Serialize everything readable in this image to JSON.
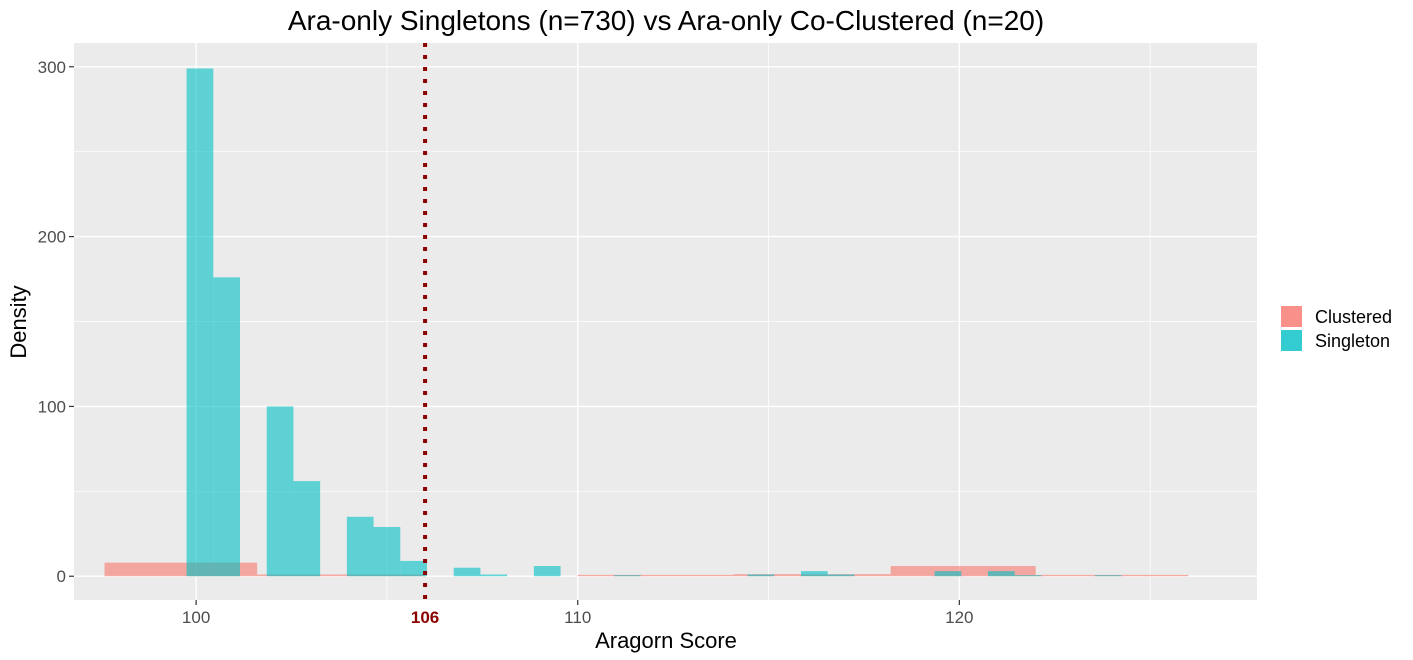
{
  "chart_data": {
    "type": "histogram",
    "title": "Ara-only Singletons (n=730) vs Ara-only Co-Clustered (n=20)",
    "xlabel": "Aragorn Score",
    "ylabel": "Density",
    "xlim": [
      96.8,
      127.8
    ],
    "ylim": [
      -14,
      314
    ],
    "xticks": [
      100,
      110,
      120
    ],
    "yticks": [
      0,
      100,
      200,
      300
    ],
    "grid": true,
    "threshold": {
      "value": 106,
      "label": "106",
      "color": "#8B0000",
      "style": "dotted"
    },
    "legend": {
      "position": "right",
      "entries": [
        "Clustered",
        "Singleton"
      ]
    },
    "series": [
      {
        "name": "Clustered",
        "color": "#F8766D",
        "opacity": 0.6,
        "bins": [
          {
            "x0": 97.6,
            "x1": 101.6,
            "y": 8
          },
          {
            "x0": 101.6,
            "x1": 103.7,
            "y": 1
          },
          {
            "x0": 103.7,
            "x1": 106.0,
            "y": 1
          },
          {
            "x0": 110.0,
            "x1": 114.1,
            "y": 0.8
          },
          {
            "x0": 114.1,
            "x1": 118.2,
            "y": 1.2
          },
          {
            "x0": 118.2,
            "x1": 122.0,
            "y": 6
          },
          {
            "x0": 122.0,
            "x1": 126.0,
            "y": 0.8
          }
        ]
      },
      {
        "name": "Singleton",
        "color": "#00BFC4",
        "opacity": 0.6,
        "bins": [
          {
            "x0": 99.75,
            "x1": 100.45,
            "y": 299
          },
          {
            "x0": 100.45,
            "x1": 101.15,
            "y": 176
          },
          {
            "x0": 101.85,
            "x1": 102.55,
            "y": 100
          },
          {
            "x0": 102.55,
            "x1": 103.25,
            "y": 56
          },
          {
            "x0": 103.95,
            "x1": 104.65,
            "y": 35
          },
          {
            "x0": 104.65,
            "x1": 105.35,
            "y": 29
          },
          {
            "x0": 105.35,
            "x1": 106.05,
            "y": 9
          },
          {
            "x0": 106.75,
            "x1": 107.45,
            "y": 5
          },
          {
            "x0": 107.45,
            "x1": 108.15,
            "y": 1
          },
          {
            "x0": 108.85,
            "x1": 109.55,
            "y": 6
          },
          {
            "x0": 110.95,
            "x1": 111.65,
            "y": 0.6
          },
          {
            "x0": 114.45,
            "x1": 115.15,
            "y": 1
          },
          {
            "x0": 115.85,
            "x1": 116.55,
            "y": 3
          },
          {
            "x0": 116.55,
            "x1": 117.25,
            "y": 1
          },
          {
            "x0": 119.35,
            "x1": 120.05,
            "y": 3
          },
          {
            "x0": 120.75,
            "x1": 121.45,
            "y": 3
          },
          {
            "x0": 121.45,
            "x1": 122.15,
            "y": 0.6
          },
          {
            "x0": 123.55,
            "x1": 124.25,
            "y": 0.6
          }
        ]
      }
    ]
  }
}
